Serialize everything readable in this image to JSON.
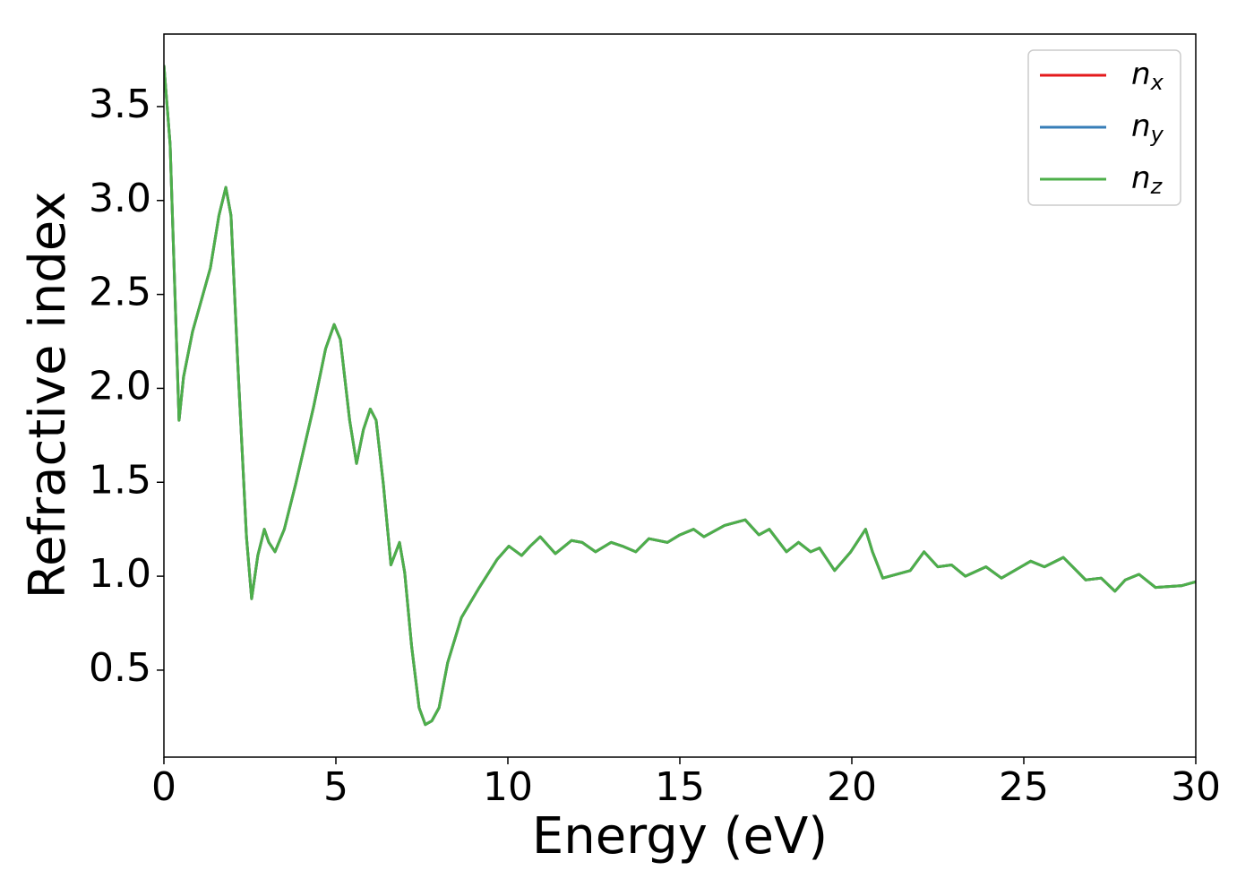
{
  "chart_data": {
    "type": "line",
    "x_label": "Energy (eV)",
    "y_label": "Refractive index",
    "x": [
      0,
      0.18,
      0.44,
      0.57,
      0.83,
      1.35,
      1.6,
      1.8,
      1.95,
      2.14,
      2.4,
      2.55,
      2.73,
      2.92,
      3.05,
      3.23,
      3.5,
      3.83,
      4.35,
      4.7,
      4.95,
      5.13,
      5.4,
      5.6,
      5.8,
      6.0,
      6.17,
      6.38,
      6.6,
      6.85,
      7.0,
      7.2,
      7.42,
      7.6,
      7.79,
      8.0,
      8.25,
      8.65,
      9.17,
      9.69,
      10.03,
      10.4,
      10.65,
      10.94,
      11.38,
      11.85,
      12.16,
      12.55,
      13.0,
      13.33,
      13.72,
      14.1,
      14.64,
      15.0,
      15.4,
      15.7,
      16.3,
      16.9,
      17.3,
      17.6,
      18.1,
      18.45,
      18.8,
      19.06,
      19.5,
      19.97,
      20.4,
      20.6,
      20.9,
      21.7,
      22.1,
      22.5,
      22.9,
      23.3,
      23.9,
      24.35,
      25.2,
      25.6,
      26.15,
      26.8,
      27.25,
      27.65,
      27.95,
      28.35,
      28.83,
      29.6,
      30
    ],
    "series": [
      {
        "name": "nx",
        "color": "#e41a1c",
        "values": [
          3.72,
          3.3,
          1.83,
          2.06,
          2.3,
          2.64,
          2.92,
          3.07,
          2.92,
          2.16,
          1.21,
          0.88,
          1.11,
          1.25,
          1.18,
          1.13,
          1.25,
          1.49,
          1.9,
          2.21,
          2.34,
          2.26,
          1.83,
          1.6,
          1.78,
          1.89,
          1.83,
          1.49,
          1.06,
          1.18,
          1.02,
          0.63,
          0.3,
          0.21,
          0.23,
          0.3,
          0.54,
          0.78,
          0.94,
          1.09,
          1.16,
          1.11,
          1.16,
          1.21,
          1.12,
          1.19,
          1.18,
          1.13,
          1.18,
          1.16,
          1.13,
          1.2,
          1.18,
          1.22,
          1.25,
          1.21,
          1.27,
          1.3,
          1.22,
          1.25,
          1.13,
          1.18,
          1.13,
          1.15,
          1.03,
          1.13,
          1.25,
          1.13,
          0.99,
          1.03,
          1.13,
          1.05,
          1.06,
          1.0,
          1.05,
          0.99,
          1.08,
          1.05,
          1.1,
          0.98,
          0.99,
          0.92,
          0.98,
          1.01,
          0.94,
          0.95,
          0.97
        ]
      },
      {
        "name": "ny",
        "color": "#377eb8",
        "values": [
          3.72,
          3.3,
          1.83,
          2.06,
          2.3,
          2.64,
          2.92,
          3.07,
          2.92,
          2.16,
          1.21,
          0.88,
          1.11,
          1.25,
          1.18,
          1.13,
          1.25,
          1.49,
          1.9,
          2.21,
          2.34,
          2.26,
          1.83,
          1.6,
          1.78,
          1.89,
          1.83,
          1.49,
          1.06,
          1.18,
          1.02,
          0.63,
          0.3,
          0.21,
          0.23,
          0.3,
          0.54,
          0.78,
          0.94,
          1.09,
          1.16,
          1.11,
          1.16,
          1.21,
          1.12,
          1.19,
          1.18,
          1.13,
          1.18,
          1.16,
          1.13,
          1.2,
          1.18,
          1.22,
          1.25,
          1.21,
          1.27,
          1.3,
          1.22,
          1.25,
          1.13,
          1.18,
          1.13,
          1.15,
          1.03,
          1.13,
          1.25,
          1.13,
          0.99,
          1.03,
          1.13,
          1.05,
          1.06,
          1.0,
          1.05,
          0.99,
          1.08,
          1.05,
          1.1,
          0.98,
          0.99,
          0.92,
          0.98,
          1.01,
          0.94,
          0.95,
          0.97
        ]
      },
      {
        "name": "nz",
        "color": "#4daf4a",
        "values": [
          3.72,
          3.3,
          1.83,
          2.06,
          2.3,
          2.64,
          2.92,
          3.07,
          2.92,
          2.16,
          1.21,
          0.88,
          1.11,
          1.25,
          1.18,
          1.13,
          1.25,
          1.49,
          1.9,
          2.21,
          2.34,
          2.26,
          1.83,
          1.6,
          1.78,
          1.89,
          1.83,
          1.49,
          1.06,
          1.18,
          1.02,
          0.63,
          0.3,
          0.21,
          0.23,
          0.3,
          0.54,
          0.78,
          0.94,
          1.09,
          1.16,
          1.11,
          1.16,
          1.21,
          1.12,
          1.19,
          1.18,
          1.13,
          1.18,
          1.16,
          1.13,
          1.2,
          1.18,
          1.22,
          1.25,
          1.21,
          1.27,
          1.3,
          1.22,
          1.25,
          1.13,
          1.18,
          1.13,
          1.15,
          1.03,
          1.13,
          1.25,
          1.13,
          0.99,
          1.03,
          1.13,
          1.05,
          1.06,
          1.0,
          1.05,
          0.99,
          1.08,
          1.05,
          1.1,
          0.98,
          0.99,
          0.92,
          0.98,
          1.01,
          0.94,
          0.95,
          0.97
        ]
      }
    ],
    "xlim": [
      0,
      30
    ],
    "xticks": [
      0,
      5,
      10,
      15,
      20,
      25,
      30
    ],
    "ylim": [
      0.037,
      3.886
    ],
    "yticks": [
      0.5,
      {
        "value": 1,
        "label": "1.0"
      },
      1.5,
      {
        "value": 2,
        "label": "2.0"
      },
      2.5,
      {
        "value": 3,
        "label": "3.0"
      },
      3.5
    ],
    "grid": false,
    "legend": "upper right"
  }
}
